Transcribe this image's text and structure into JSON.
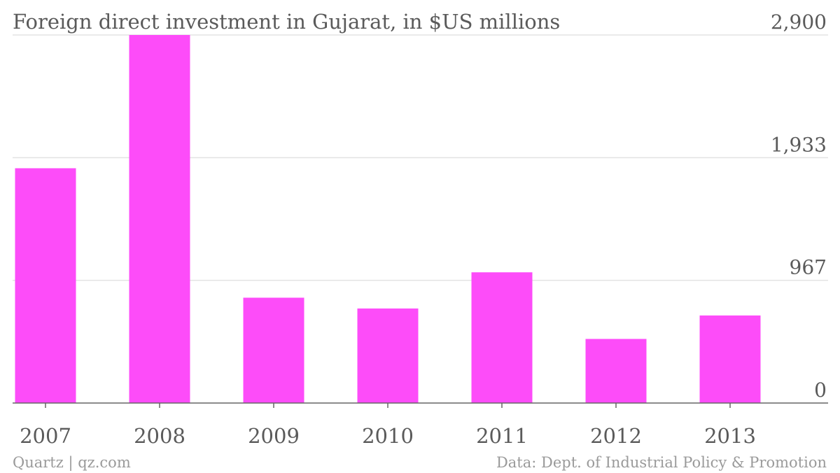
{
  "chart_data": {
    "type": "bar",
    "title": "Foreign direct investment in Gujarat, in $US millions",
    "categories": [
      "2007",
      "2008",
      "2009",
      "2010",
      "2011",
      "2012",
      "2013"
    ],
    "values": [
      1850,
      2900,
      830,
      745,
      1030,
      505,
      690
    ],
    "ylim": [
      0,
      2900
    ],
    "yticks": [
      0,
      967,
      1933,
      2900
    ],
    "ytick_labels": [
      "0",
      "967",
      "1,933",
      "2,900"
    ],
    "yaxis_side": "right",
    "grid": true,
    "bar_color": "#fd4cf9",
    "xlabel": "",
    "ylabel": ""
  },
  "footer": {
    "credit": "Quartz | qz.com",
    "source": "Data: Dept. of Industrial Policy & Promotion"
  }
}
